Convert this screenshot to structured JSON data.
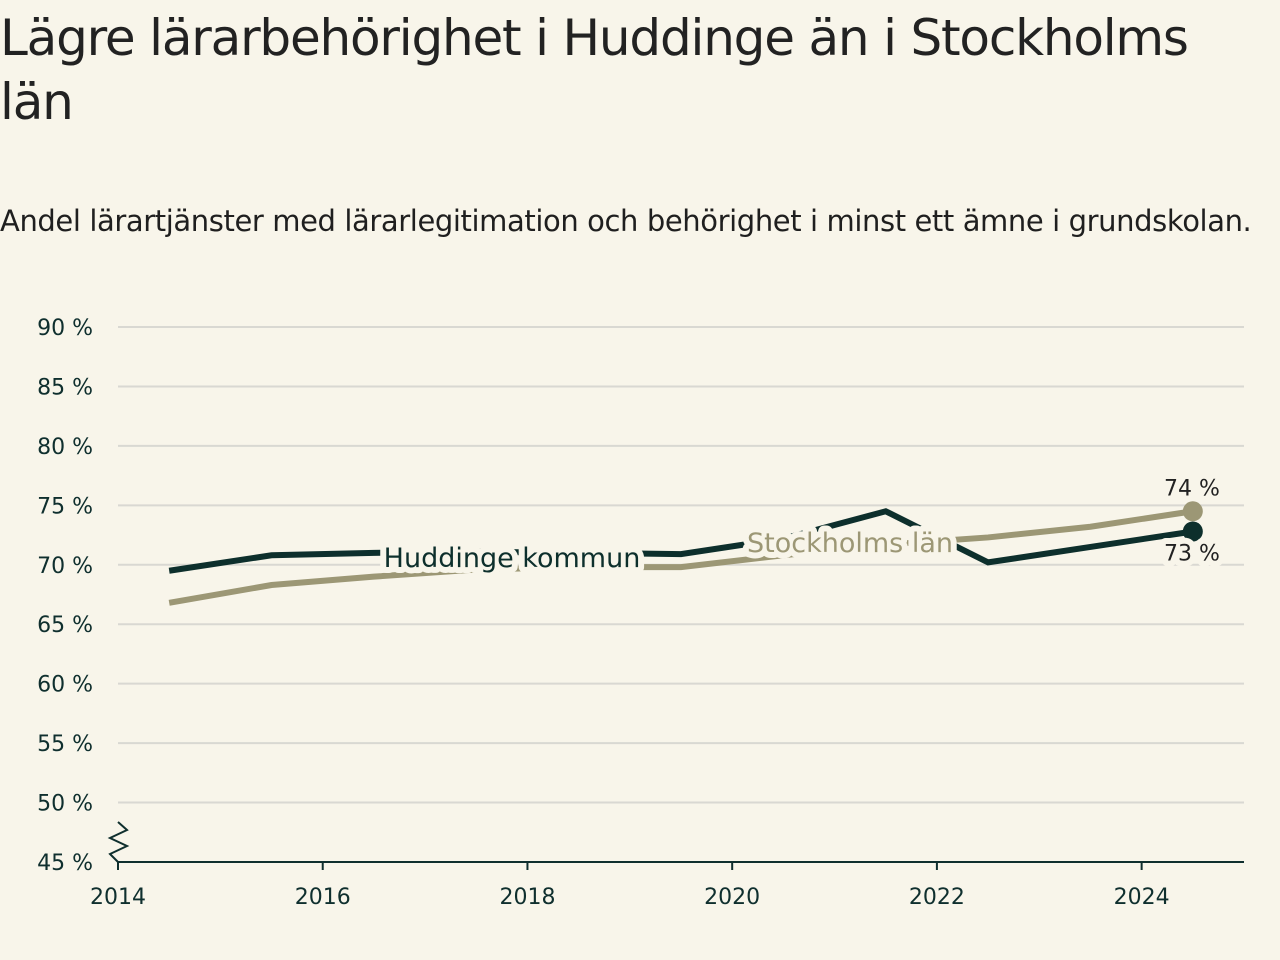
{
  "title": "Lägre lärarbehörighet i Huddinge än i Stockholms län",
  "subtitle": "Andel lärartjänster med lärarlegitimation och behörighet i minst ett ämne i grundskolan.",
  "chart_data": {
    "type": "line",
    "ylim": [
      45,
      90
    ],
    "xlim": [
      2014,
      2025
    ],
    "y_ticks": [
      45,
      50,
      55,
      60,
      65,
      70,
      75,
      80,
      85,
      90
    ],
    "y_tick_labels": [
      "45 %",
      "50 %",
      "55 %",
      "60 %",
      "65 %",
      "70 %",
      "75 %",
      "80 %",
      "85 %",
      "90 %"
    ],
    "x_ticks": [
      2014,
      2016,
      2018,
      2020,
      2022,
      2024
    ],
    "x_tick_labels": [
      "2014",
      "2016",
      "2018",
      "2020",
      "2022",
      "2024"
    ],
    "grid": true,
    "axis_break": true,
    "series": [
      {
        "name": "Huddinge kommun",
        "color": "#0d2f2c",
        "x": [
          2014.5,
          2015.5,
          2016.5,
          2017.5,
          2018.5,
          2019.5,
          2020.5,
          2021.5,
          2022.5,
          2023.5,
          2024.5
        ],
        "values": [
          69.5,
          70.8,
          71.0,
          71.1,
          71.0,
          70.9,
          72.2,
          74.5,
          70.2,
          71.5,
          72.8
        ],
        "end_label": "73 %"
      },
      {
        "name": "Stockholms län",
        "color": "#9c9775",
        "x": [
          2014.5,
          2015.5,
          2016.5,
          2017.5,
          2018.5,
          2019.5,
          2020.5,
          2021.5,
          2022.5,
          2023.5,
          2024.5
        ],
        "values": [
          66.8,
          68.3,
          69.0,
          69.6,
          69.8,
          69.8,
          70.8,
          71.7,
          72.3,
          73.2,
          74.5
        ],
        "end_label": "74 %"
      }
    ]
  }
}
